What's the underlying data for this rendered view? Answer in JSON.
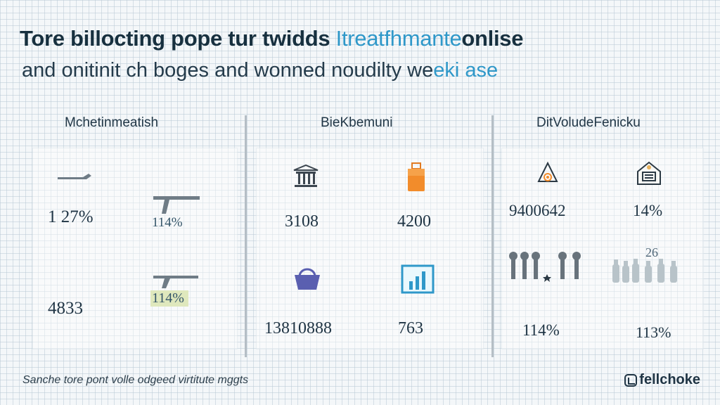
{
  "header": {
    "title_main": "Tore billocting pope tur twidds ",
    "title_accent": "Itreatfhmante",
    "title_end": "onlise",
    "subtitle_main": "and onitinit ch boges and wonned noudilty we",
    "subtitle_accent": "eki ase"
  },
  "sections": [
    {
      "title": "Mchetinmeatish",
      "metrics": [
        "1 27%",
        "114%",
        "4833",
        "114%"
      ]
    },
    {
      "title": "BieKbemuni",
      "metrics": [
        "3108",
        "4200",
        "13810888",
        "763"
      ]
    },
    {
      "title": "DitVoludeFenicku",
      "metrics": [
        "9400642",
        "14%",
        "114%",
        "113%"
      ]
    }
  ],
  "icons": [
    "flat-arrow-icon",
    "pickaxe-icon",
    "bank-icon",
    "luggage-icon",
    "handbag-icon",
    "bar-chart-icon",
    "network-triangle-icon",
    "building-badge-icon",
    "tools-icon",
    "bottles-icon"
  ],
  "footer": {
    "note": "Sanche tore pont volle odgeed virtitute mggts",
    "brand": "fellchoke"
  },
  "colors": {
    "accent": "#2f98c9",
    "text": "#1f3444",
    "grid": "#bacad6",
    "highlight": "#dfe8bd",
    "orange": "#f28c2b",
    "purple": "#5a5fb0"
  }
}
